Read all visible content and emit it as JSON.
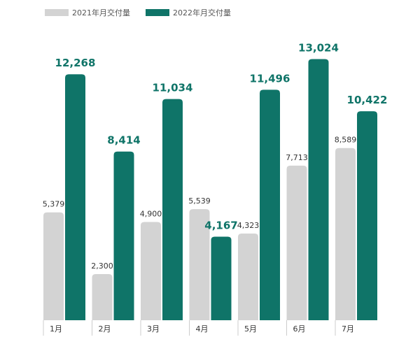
{
  "chart_data": {
    "type": "bar",
    "categories": [
      "1月",
      "2月",
      "3月",
      "4月",
      "5月",
      "6月",
      "7月"
    ],
    "series": [
      {
        "name": "2021年月交付量",
        "color": "#d3d3d3",
        "values": [
          5379,
          2300,
          4900,
          5539,
          4323,
          7713,
          8589
        ],
        "labels": [
          "5,379",
          "2,300",
          "4,900",
          "5,539",
          "4,323",
          "7,713",
          "8,589"
        ]
      },
      {
        "name": "2022年月交付量",
        "color": "#0f7468",
        "values": [
          12268,
          8414,
          11034,
          4167,
          11496,
          13024,
          10422
        ],
        "labels": [
          "12,268",
          "8,414",
          "11,034",
          "4,167",
          "11,496",
          "13,024",
          "10,422"
        ]
      }
    ],
    "ylim": [
      0,
      13600
    ],
    "grid": false,
    "legend": "top-left",
    "category_separators": true
  }
}
